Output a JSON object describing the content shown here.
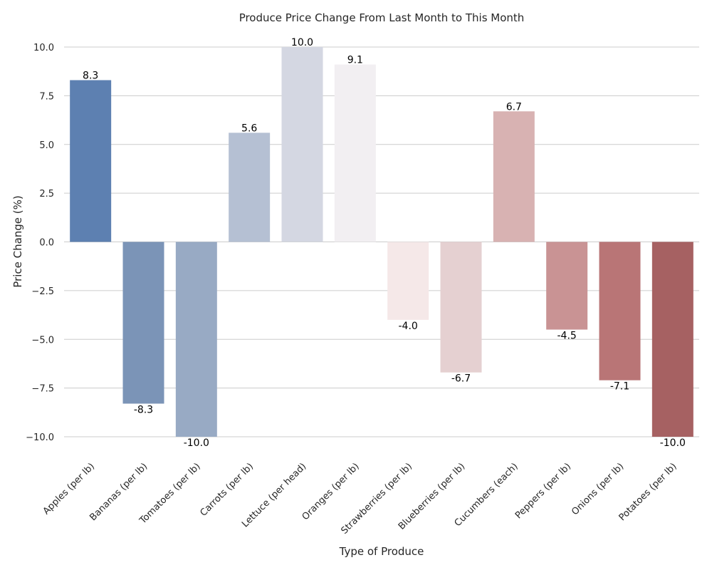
{
  "chart_data": {
    "type": "bar",
    "title": "Produce Price Change From Last Month to This Month",
    "xlabel": "Type of Produce",
    "ylabel": "Price Change (%)",
    "ylim": [
      -10.0,
      10.0
    ],
    "yticks": [
      10.0,
      7.5,
      5.0,
      2.5,
      0.0,
      -2.5,
      -5.0,
      -7.5,
      -10.0
    ],
    "ytick_labels": [
      "10.0",
      "7.5",
      "5.0",
      "2.5",
      "0.0",
      "−2.5",
      "−5.0",
      "−7.5",
      "−10.0"
    ],
    "grid": true,
    "categories": [
      "Apples (per lb)",
      "Bananas (per lb)",
      "Tomatoes (per lb)",
      "Carrots (per lb)",
      "Lettuce (per head)",
      "Oranges (per lb)",
      "Strawberries (per lb)",
      "Blueberries (per lb)",
      "Cucumbers (each)",
      "Peppers (per lb)",
      "Onions (per lb)",
      "Potatoes (per lb)"
    ],
    "values": [
      8.3,
      -8.3,
      -10.0,
      5.6,
      10.0,
      9.1,
      -4.0,
      -6.7,
      6.7,
      -4.5,
      -7.1,
      -10.0
    ],
    "value_labels": [
      "8.3",
      "-8.3",
      "-10.0",
      "5.6",
      "10.0",
      "9.1",
      "-4.0",
      "-6.7",
      "6.7",
      "-4.5",
      "-7.1",
      "-10.0"
    ],
    "colors": [
      "#5d80b1",
      "#7b94b7",
      "#98aac4",
      "#b5c0d3",
      "#d4d7e2",
      "#f2eff2",
      "#f5e8e8",
      "#e5d0d1",
      "#d8b2b2",
      "#c99394",
      "#b97576",
      "#a66162"
    ]
  }
}
